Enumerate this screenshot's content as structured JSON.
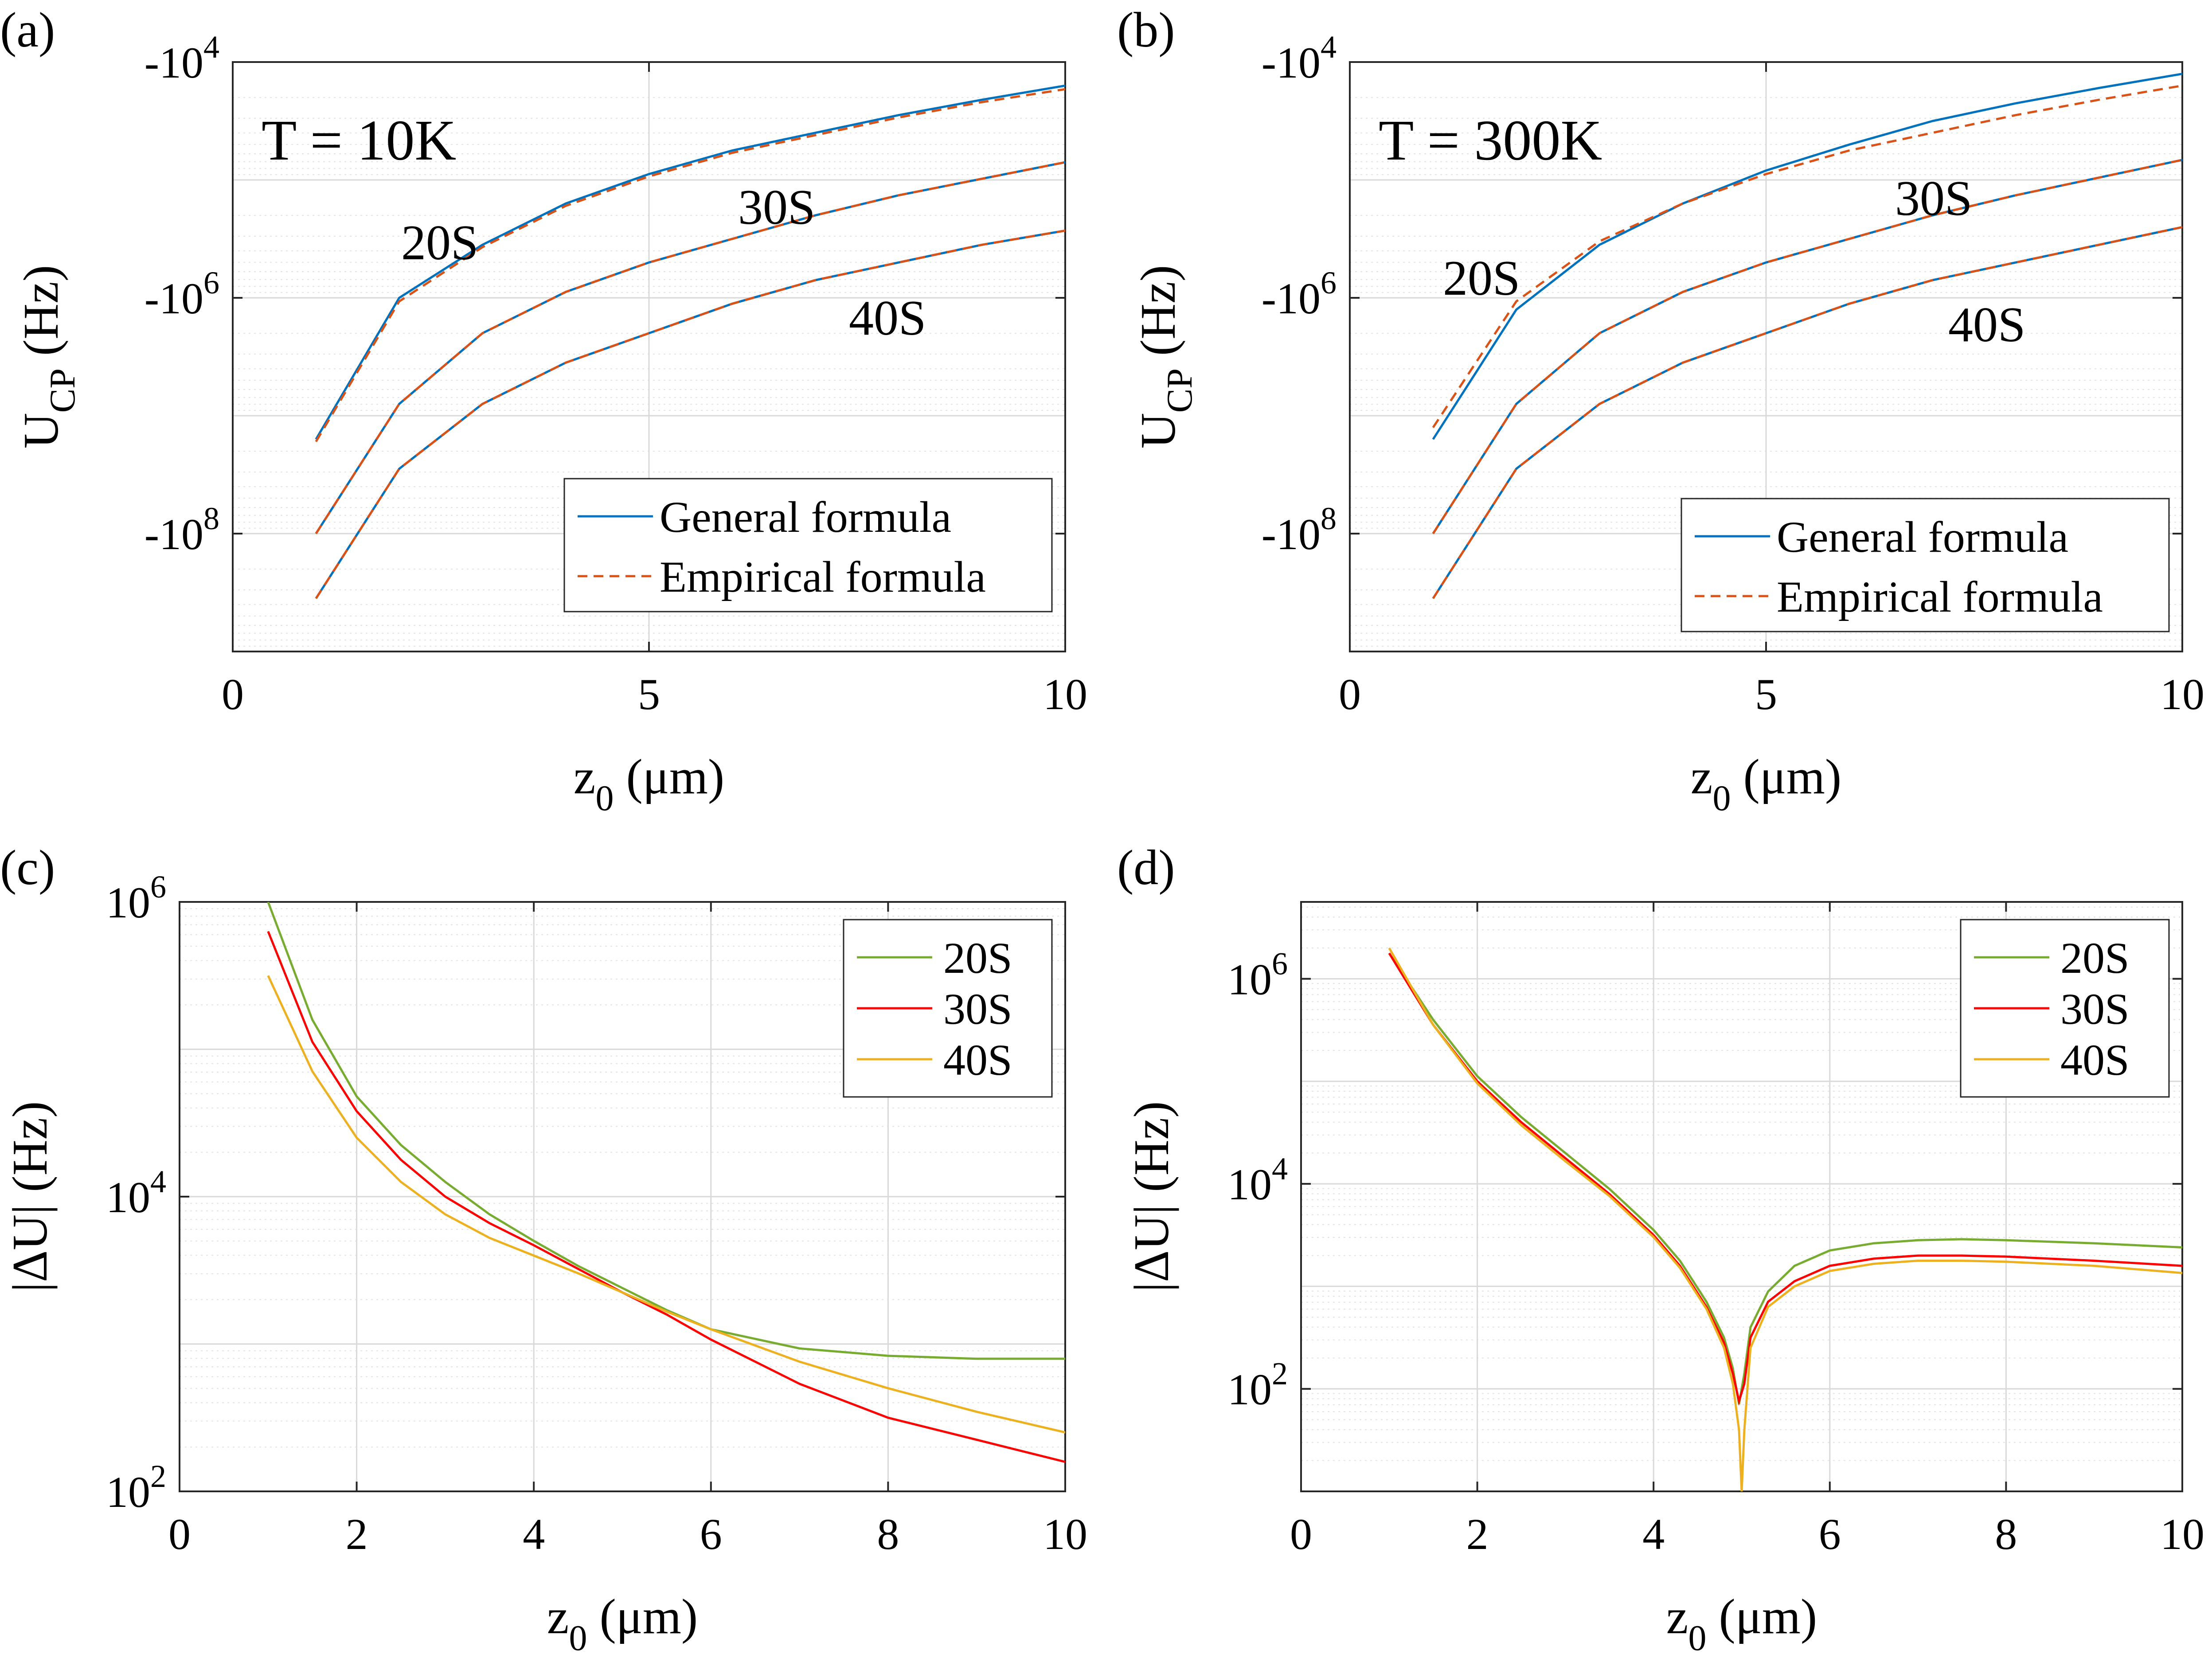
{
  "chart_data": [
    {
      "type": "line",
      "panel_label": "(a)",
      "annotation": "T = 10K",
      "xlabel": {
        "main": "z",
        "sub": "0",
        "rest": " (μm)"
      },
      "ylabel": {
        "main": "U",
        "sub": "CP",
        "rest": " (Hz)"
      },
      "xlim": [
        0,
        10
      ],
      "xticks": [
        0,
        5,
        10
      ],
      "yscale": "log-magnitude",
      "ylim_log10": [
        9,
        4
      ],
      "yticks": [
        {
          "log": 4,
          "base": "-10",
          "exp": "4"
        },
        {
          "log": 6,
          "base": "-10",
          "exp": "6"
        },
        {
          "log": 8,
          "base": "-10",
          "exp": "8"
        }
      ],
      "grid": true,
      "legend": {
        "position": "lower-right",
        "entries": [
          "General formula",
          "Empirical formula"
        ]
      },
      "series_colors": {
        "general": "#0072BD",
        "empirical": "#D95319"
      },
      "curves": [
        {
          "name": "20S",
          "label": "20S",
          "x": [
            1,
            2,
            3,
            4,
            5,
            6,
            7,
            8,
            9,
            10
          ],
          "general_log10": [
            7.2,
            6.0,
            5.55,
            5.2,
            4.95,
            4.75,
            4.6,
            4.45,
            4.32,
            4.2
          ],
          "empirical_log10": [
            7.22,
            6.03,
            5.57,
            5.22,
            4.97,
            4.77,
            4.62,
            4.47,
            4.34,
            4.23
          ]
        },
        {
          "name": "30S",
          "label": "30S",
          "x": [
            1,
            2,
            3,
            4,
            5,
            6,
            7,
            8,
            9,
            10
          ],
          "general_log10": [
            8.0,
            6.9,
            6.3,
            5.95,
            5.7,
            5.5,
            5.3,
            5.13,
            4.99,
            4.85
          ],
          "empirical_log10": [
            8.0,
            6.9,
            6.3,
            5.95,
            5.7,
            5.5,
            5.3,
            5.13,
            4.99,
            4.85
          ]
        },
        {
          "name": "40S",
          "label": "40S",
          "x": [
            1,
            2,
            3,
            4,
            5,
            6,
            7,
            8,
            9,
            10
          ],
          "general_log10": [
            8.55,
            7.45,
            6.9,
            6.55,
            6.3,
            6.05,
            5.85,
            5.7,
            5.55,
            5.43
          ],
          "empirical_log10": [
            8.55,
            7.45,
            6.9,
            6.55,
            6.3,
            6.05,
            5.85,
            5.7,
            5.55,
            5.43
          ]
        }
      ]
    },
    {
      "type": "line",
      "panel_label": "(b)",
      "annotation": "T = 300K",
      "xlabel": {
        "main": "z",
        "sub": "0",
        "rest": " (μm)"
      },
      "ylabel": {
        "main": "U",
        "sub": "CP",
        "rest": " (Hz)"
      },
      "xlim": [
        0,
        10
      ],
      "xticks": [
        0,
        5,
        10
      ],
      "yscale": "log-magnitude",
      "ylim_log10": [
        9,
        4
      ],
      "yticks": [
        {
          "log": 4,
          "base": "-10",
          "exp": "4"
        },
        {
          "log": 6,
          "base": "-10",
          "exp": "6"
        },
        {
          "log": 8,
          "base": "-10",
          "exp": "8"
        }
      ],
      "grid": true,
      "legend": {
        "position": "lower-right",
        "entries": [
          "General formula",
          "Empirical formula"
        ]
      },
      "series_colors": {
        "general": "#0072BD",
        "empirical": "#D95319"
      },
      "curves": [
        {
          "name": "20S",
          "label": "20S",
          "x": [
            1,
            2,
            3,
            4,
            5,
            6,
            7,
            8,
            9,
            10
          ],
          "general_log10": [
            7.2,
            6.1,
            5.55,
            5.2,
            4.92,
            4.7,
            4.5,
            4.35,
            4.22,
            4.1
          ],
          "empirical_log10": [
            7.1,
            6.03,
            5.52,
            5.2,
            4.95,
            4.75,
            4.6,
            4.45,
            4.32,
            4.2
          ]
        },
        {
          "name": "30S",
          "label": "30S",
          "x": [
            1,
            2,
            3,
            4,
            5,
            6,
            7,
            8,
            9,
            10
          ],
          "general_log10": [
            8.0,
            6.9,
            6.3,
            5.95,
            5.7,
            5.5,
            5.3,
            5.13,
            4.98,
            4.83
          ],
          "empirical_log10": [
            8.0,
            6.9,
            6.3,
            5.95,
            5.7,
            5.5,
            5.3,
            5.13,
            4.98,
            4.83
          ]
        },
        {
          "name": "40S",
          "label": "40S",
          "x": [
            1,
            2,
            3,
            4,
            5,
            6,
            7,
            8,
            9,
            10
          ],
          "general_log10": [
            8.55,
            7.45,
            6.9,
            6.55,
            6.3,
            6.05,
            5.85,
            5.7,
            5.55,
            5.4
          ],
          "empirical_log10": [
            8.55,
            7.45,
            6.9,
            6.55,
            6.3,
            6.05,
            5.85,
            5.7,
            5.55,
            5.4
          ]
        }
      ]
    },
    {
      "type": "line",
      "panel_label": "(c)",
      "xlabel": {
        "main": "z",
        "sub": "0",
        "rest": " (μm)"
      },
      "ylabel": {
        "main": "|ΔU|",
        "sub": "",
        "rest": " (Hz)"
      },
      "xlim": [
        0,
        10
      ],
      "xticks": [
        0,
        2,
        4,
        6,
        8,
        10
      ],
      "yscale": "log",
      "ylim_log10": [
        2,
        6
      ],
      "yticks": [
        {
          "log": 2,
          "base": "10",
          "exp": "2"
        },
        {
          "log": 4,
          "base": "10",
          "exp": "4"
        },
        {
          "log": 6,
          "base": "10",
          "exp": "6"
        }
      ],
      "grid": true,
      "legend": {
        "position": "top-right",
        "entries": [
          "20S",
          "30S",
          "40S"
        ]
      },
      "series": [
        {
          "name": "20S",
          "color": "#77AC30",
          "x": [
            1,
            1.5,
            2,
            2.5,
            3,
            3.5,
            4,
            4.5,
            5,
            5.5,
            6,
            7,
            8,
            9,
            10
          ],
          "log10": [
            6.0,
            5.2,
            4.68,
            4.35,
            4.1,
            3.88,
            3.7,
            3.53,
            3.38,
            3.23,
            3.1,
            2.97,
            2.92,
            2.9,
            2.9
          ]
        },
        {
          "name": "30S",
          "color": "#FF0000",
          "x": [
            1,
            1.5,
            2,
            2.5,
            3,
            3.5,
            4,
            4.5,
            5,
            5.5,
            6,
            7,
            8,
            9,
            10
          ],
          "log10": [
            5.8,
            5.05,
            4.58,
            4.25,
            4.0,
            3.82,
            3.67,
            3.51,
            3.35,
            3.2,
            3.03,
            2.73,
            2.5,
            2.35,
            2.2
          ]
        },
        {
          "name": "40S",
          "color": "#EDB120",
          "x": [
            1,
            1.5,
            2,
            2.5,
            3,
            3.5,
            4,
            4.5,
            5,
            5.5,
            6,
            7,
            8,
            9,
            10
          ],
          "log10": [
            5.5,
            4.85,
            4.4,
            4.1,
            3.88,
            3.72,
            3.6,
            3.48,
            3.35,
            3.22,
            3.1,
            2.88,
            2.7,
            2.54,
            2.4
          ]
        }
      ]
    },
    {
      "type": "line",
      "panel_label": "(d)",
      "xlabel": {
        "main": "z",
        "sub": "0",
        "rest": " (μm)"
      },
      "ylabel": {
        "main": "|ΔU|",
        "sub": "",
        "rest": " (Hz)"
      },
      "xlim": [
        0,
        10
      ],
      "xticks": [
        0,
        2,
        4,
        6,
        8,
        10
      ],
      "yscale": "log",
      "ylim_log10": [
        1,
        6.75
      ],
      "yticks": [
        {
          "log": 2,
          "base": "10",
          "exp": "2"
        },
        {
          "log": 4,
          "base": "10",
          "exp": "4"
        },
        {
          "log": 6,
          "base": "10",
          "exp": "6"
        }
      ],
      "grid": true,
      "legend": {
        "position": "top-right",
        "entries": [
          "20S",
          "30S",
          "40S"
        ]
      },
      "series": [
        {
          "name": "20S",
          "color": "#77AC30",
          "x": [
            1,
            1.5,
            2,
            2.5,
            3,
            3.5,
            4,
            4.3,
            4.6,
            4.8,
            4.9,
            4.97,
            5.03,
            5.1,
            5.3,
            5.6,
            6,
            6.5,
            7,
            7.5,
            8,
            9,
            10
          ],
          "log10": [
            6.25,
            5.6,
            5.05,
            4.65,
            4.3,
            3.95,
            3.55,
            3.25,
            2.85,
            2.5,
            2.2,
            1.85,
            2.15,
            2.6,
            2.95,
            3.2,
            3.35,
            3.42,
            3.45,
            3.46,
            3.45,
            3.42,
            3.38
          ]
        },
        {
          "name": "30S",
          "color": "#FF0000",
          "x": [
            1,
            1.5,
            2,
            2.5,
            3,
            3.5,
            4,
            4.3,
            4.6,
            4.8,
            4.9,
            4.97,
            5.03,
            5.1,
            5.3,
            5.6,
            6,
            6.5,
            7,
            7.5,
            8,
            9,
            10
          ],
          "log10": [
            6.25,
            5.55,
            5.0,
            4.6,
            4.25,
            3.9,
            3.5,
            3.2,
            2.8,
            2.45,
            2.15,
            1.88,
            2.05,
            2.5,
            2.85,
            3.05,
            3.2,
            3.27,
            3.3,
            3.3,
            3.29,
            3.25,
            3.2
          ]
        },
        {
          "name": "40S",
          "color": "#EDB120",
          "x": [
            1,
            1.5,
            2,
            2.5,
            3,
            3.5,
            4,
            4.3,
            4.6,
            4.8,
            4.9,
            4.97,
            5.0,
            5.03,
            5.1,
            5.3,
            5.6,
            6,
            6.5,
            7,
            7.5,
            8,
            9,
            10
          ],
          "log10": [
            6.3,
            5.55,
            4.98,
            4.57,
            4.22,
            3.88,
            3.48,
            3.18,
            2.78,
            2.4,
            2.05,
            1.6,
            1.0,
            1.6,
            2.4,
            2.8,
            3.0,
            3.15,
            3.22,
            3.25,
            3.25,
            3.24,
            3.2,
            3.13
          ]
        }
      ]
    }
  ]
}
